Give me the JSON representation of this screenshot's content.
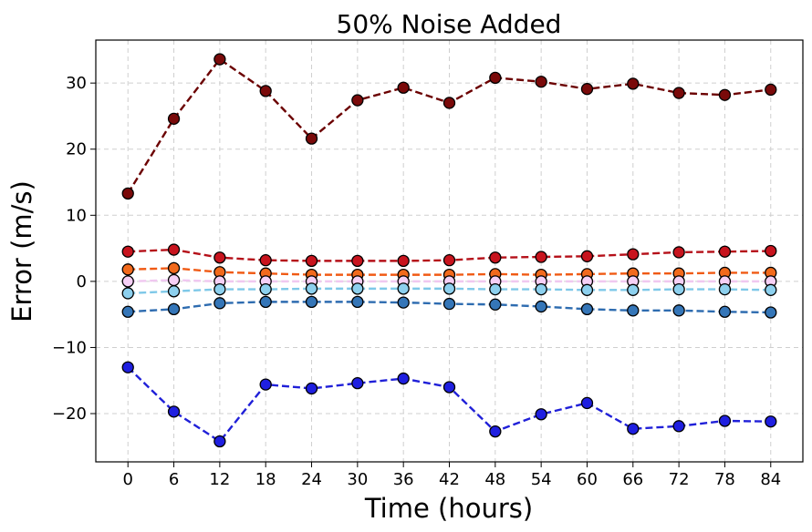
{
  "chart_data": {
    "type": "line",
    "title": "50% Noise Added",
    "xlabel": "Time (hours)",
    "ylabel": "Error (m/s)",
    "x": [
      0,
      6,
      12,
      18,
      24,
      30,
      36,
      42,
      48,
      54,
      60,
      66,
      72,
      78,
      84
    ],
    "xticks": [
      "0",
      "6",
      "12",
      "18",
      "24",
      "30",
      "36",
      "42",
      "48",
      "54",
      "60",
      "66",
      "72",
      "78",
      "84"
    ],
    "yticks": [
      {
        "value": -20,
        "label": "−20"
      },
      {
        "value": -10,
        "label": "−10"
      },
      {
        "value": 0,
        "label": "0"
      },
      {
        "value": 10,
        "label": "10"
      },
      {
        "value": 20,
        "label": "20"
      },
      {
        "value": 30,
        "label": "30"
      }
    ],
    "xlim": [
      -4.2,
      88.2
    ],
    "ylim": [
      -27.3,
      36.5
    ],
    "grid": true,
    "series": [
      {
        "line_color": "#6b0000",
        "marker_color": "#7a0a0a",
        "values": [
          13.3,
          24.6,
          33.6,
          28.8,
          21.6,
          27.4,
          29.3,
          27.0,
          30.8,
          30.2,
          29.1,
          29.9,
          28.5,
          28.2,
          29.0
        ]
      },
      {
        "line_color": "#b51019",
        "marker_color": "#c8141e",
        "values": [
          4.5,
          4.8,
          3.6,
          3.2,
          3.1,
          3.1,
          3.1,
          3.2,
          3.6,
          3.7,
          3.8,
          4.1,
          4.4,
          4.5,
          4.6
        ]
      },
      {
        "line_color": "#f05a14",
        "marker_color": "#f26a1c",
        "values": [
          1.8,
          2.0,
          1.4,
          1.2,
          1.0,
          1.0,
          1.0,
          1.0,
          1.1,
          1.0,
          1.1,
          1.2,
          1.2,
          1.3,
          1.3
        ]
      },
      {
        "line_color": "#f0c8f0",
        "marker_color": "#f6d0f6",
        "values": [
          0.0,
          0.2,
          0.0,
          0.0,
          0.0,
          0.0,
          0.0,
          0.0,
          0.0,
          0.0,
          0.0,
          0.0,
          0.0,
          0.0,
          0.0
        ]
      },
      {
        "line_color": "#7ec8e8",
        "marker_color": "#8dd0ee",
        "values": [
          -1.8,
          -1.5,
          -1.2,
          -1.2,
          -1.1,
          -1.1,
          -1.1,
          -1.1,
          -1.2,
          -1.2,
          -1.3,
          -1.3,
          -1.2,
          -1.2,
          -1.3
        ]
      },
      {
        "line_color": "#2e6cb0",
        "marker_color": "#3576b8",
        "values": [
          -4.6,
          -4.2,
          -3.3,
          -3.1,
          -3.1,
          -3.1,
          -3.2,
          -3.4,
          -3.5,
          -3.8,
          -4.2,
          -4.4,
          -4.4,
          -4.6,
          -4.7
        ]
      },
      {
        "line_color": "#2020d8",
        "marker_color": "#1f1fe0",
        "values": [
          -13.0,
          -19.7,
          -24.2,
          -15.6,
          -16.2,
          -15.4,
          -14.7,
          -16.0,
          -22.7,
          -20.1,
          -18.4,
          -22.3,
          -21.9,
          -21.1,
          -21.2
        ]
      }
    ]
  }
}
